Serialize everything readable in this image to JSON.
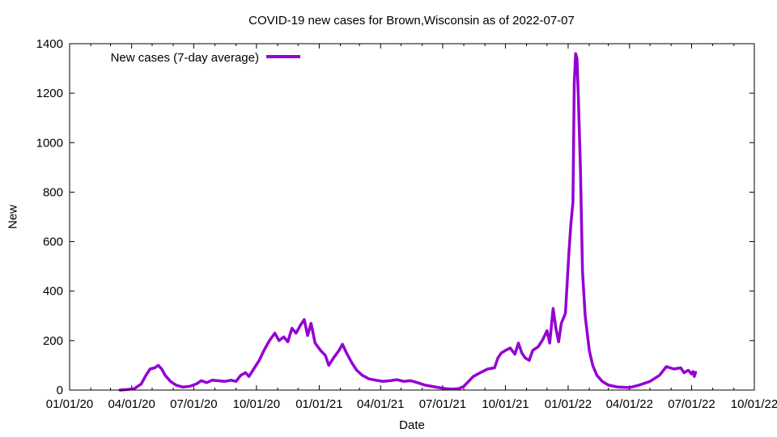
{
  "chart_data": {
    "type": "line",
    "title": "COVID-19 new cases for Brown,Wisconsin as of 2022-07-07",
    "xlabel": "Date",
    "ylabel": "New",
    "xlim": [
      "2020-01-01",
      "2022-10-01"
    ],
    "ylim": [
      0,
      1400
    ],
    "xticks": [
      "01/01/20",
      "04/01/20",
      "07/01/20",
      "10/01/20",
      "01/01/21",
      "04/01/21",
      "07/01/21",
      "10/01/21",
      "01/01/22",
      "04/01/22",
      "07/01/22",
      "10/01/22"
    ],
    "yticks": [
      0,
      200,
      400,
      600,
      800,
      1000,
      1200,
      1400
    ],
    "grid": false,
    "legend_position": "top-left",
    "series": [
      {
        "name": "New cases (7-day average)",
        "color": "#9400d3",
        "points": [
          [
            "2020-03-15",
            0
          ],
          [
            "2020-03-25",
            2
          ],
          [
            "2020-04-05",
            6
          ],
          [
            "2020-04-15",
            25
          ],
          [
            "2020-04-22",
            60
          ],
          [
            "2020-04-28",
            85
          ],
          [
            "2020-05-05",
            90
          ],
          [
            "2020-05-10",
            100
          ],
          [
            "2020-05-15",
            85
          ],
          [
            "2020-05-20",
            60
          ],
          [
            "2020-05-28",
            35
          ],
          [
            "2020-06-05",
            20
          ],
          [
            "2020-06-15",
            12
          ],
          [
            "2020-06-25",
            15
          ],
          [
            "2020-07-05",
            25
          ],
          [
            "2020-07-12",
            38
          ],
          [
            "2020-07-20",
            30
          ],
          [
            "2020-07-28",
            40
          ],
          [
            "2020-08-05",
            38
          ],
          [
            "2020-08-15",
            35
          ],
          [
            "2020-08-25",
            40
          ],
          [
            "2020-09-01",
            35
          ],
          [
            "2020-09-08",
            60
          ],
          [
            "2020-09-15",
            70
          ],
          [
            "2020-09-20",
            55
          ],
          [
            "2020-09-28",
            90
          ],
          [
            "2020-10-05",
            120
          ],
          [
            "2020-10-12",
            160
          ],
          [
            "2020-10-20",
            200
          ],
          [
            "2020-10-28",
            230
          ],
          [
            "2020-11-03",
            200
          ],
          [
            "2020-11-10",
            215
          ],
          [
            "2020-11-16",
            195
          ],
          [
            "2020-11-22",
            250
          ],
          [
            "2020-11-28",
            230
          ],
          [
            "2020-12-04",
            260
          ],
          [
            "2020-12-10",
            285
          ],
          [
            "2020-12-15",
            220
          ],
          [
            "2020-12-20",
            270
          ],
          [
            "2020-12-26",
            190
          ],
          [
            "2021-01-03",
            160
          ],
          [
            "2021-01-10",
            140
          ],
          [
            "2021-01-15",
            100
          ],
          [
            "2021-01-22",
            130
          ],
          [
            "2021-01-30",
            160
          ],
          [
            "2021-02-04",
            185
          ],
          [
            "2021-02-10",
            150
          ],
          [
            "2021-02-18",
            110
          ],
          [
            "2021-02-25",
            80
          ],
          [
            "2021-03-05",
            60
          ],
          [
            "2021-03-15",
            45
          ],
          [
            "2021-03-25",
            40
          ],
          [
            "2021-04-05",
            35
          ],
          [
            "2021-04-15",
            38
          ],
          [
            "2021-04-25",
            42
          ],
          [
            "2021-05-05",
            35
          ],
          [
            "2021-05-15",
            38
          ],
          [
            "2021-05-25",
            30
          ],
          [
            "2021-06-05",
            20
          ],
          [
            "2021-06-15",
            15
          ],
          [
            "2021-06-25",
            10
          ],
          [
            "2021-07-05",
            6
          ],
          [
            "2021-07-15",
            4
          ],
          [
            "2021-07-25",
            6
          ],
          [
            "2021-08-01",
            15
          ],
          [
            "2021-08-08",
            35
          ],
          [
            "2021-08-15",
            55
          ],
          [
            "2021-08-25",
            70
          ],
          [
            "2021-09-05",
            85
          ],
          [
            "2021-09-15",
            90
          ],
          [
            "2021-09-20",
            130
          ],
          [
            "2021-09-25",
            150
          ],
          [
            "2021-10-01",
            160
          ],
          [
            "2021-10-08",
            170
          ],
          [
            "2021-10-15",
            145
          ],
          [
            "2021-10-20",
            190
          ],
          [
            "2021-10-25",
            150
          ],
          [
            "2021-10-30",
            130
          ],
          [
            "2021-11-05",
            120
          ],
          [
            "2021-11-10",
            160
          ],
          [
            "2021-11-18",
            175
          ],
          [
            "2021-11-25",
            205
          ],
          [
            "2021-12-01",
            240
          ],
          [
            "2021-12-05",
            190
          ],
          [
            "2021-12-10",
            330
          ],
          [
            "2021-12-14",
            250
          ],
          [
            "2021-12-18",
            195
          ],
          [
            "2021-12-22",
            270
          ],
          [
            "2021-12-28",
            310
          ],
          [
            "2022-01-02",
            550
          ],
          [
            "2022-01-05",
            670
          ],
          [
            "2022-01-08",
            760
          ],
          [
            "2022-01-10",
            1240
          ],
          [
            "2022-01-12",
            1360
          ],
          [
            "2022-01-14",
            1340
          ],
          [
            "2022-01-16",
            1180
          ],
          [
            "2022-01-19",
            900
          ],
          [
            "2022-01-22",
            480
          ],
          [
            "2022-01-26",
            300
          ],
          [
            "2022-02-01",
            160
          ],
          [
            "2022-02-06",
            100
          ],
          [
            "2022-02-12",
            60
          ],
          [
            "2022-02-20",
            35
          ],
          [
            "2022-03-01",
            20
          ],
          [
            "2022-03-15",
            12
          ],
          [
            "2022-04-01",
            10
          ],
          [
            "2022-04-15",
            20
          ],
          [
            "2022-05-01",
            35
          ],
          [
            "2022-05-15",
            60
          ],
          [
            "2022-05-25",
            95
          ],
          [
            "2022-06-05",
            85
          ],
          [
            "2022-06-15",
            90
          ],
          [
            "2022-06-20",
            70
          ],
          [
            "2022-06-26",
            80
          ],
          [
            "2022-07-01",
            65
          ],
          [
            "2022-07-03",
            75
          ],
          [
            "2022-07-05",
            55
          ],
          [
            "2022-07-07",
            72
          ]
        ]
      }
    ]
  }
}
